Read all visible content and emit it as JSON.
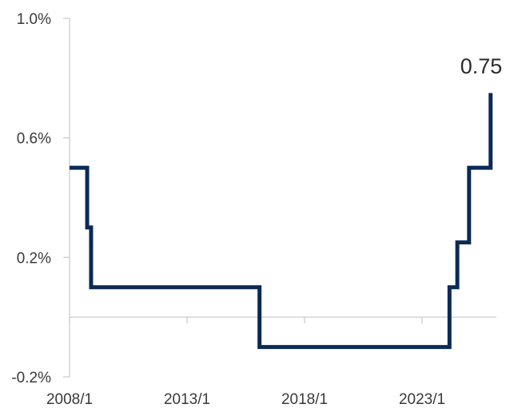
{
  "chart_data": {
    "type": "line",
    "step": true,
    "title": "",
    "xlabel": "",
    "ylabel": "",
    "ylim": [
      -0.2,
      1.0
    ],
    "xlim": [
      "2008-01",
      "2026-03"
    ],
    "y_ticks": [
      {
        "value": 1.0,
        "label": "1.0%"
      },
      {
        "value": 0.6,
        "label": "0.6%"
      },
      {
        "value": 0.2,
        "label": "0.2%"
      },
      {
        "value": -0.2,
        "label": "-0.2%"
      }
    ],
    "x_ticks": [
      {
        "value": "2008-01",
        "label": "2008/1"
      },
      {
        "value": "2013-01",
        "label": "2013/1"
      },
      {
        "value": "2018-01",
        "label": "2018/1"
      },
      {
        "value": "2023-01",
        "label": "2023/1"
      }
    ],
    "grid": false,
    "legend": "none",
    "series": [
      {
        "color": "#0b2a55",
        "points": [
          {
            "x": "2008-01",
            "y": 0.5
          },
          {
            "x": "2008-10",
            "y": 0.3
          },
          {
            "x": "2008-12",
            "y": 0.1
          },
          {
            "x": "2016-02",
            "y": -0.1
          },
          {
            "x": "2024-03",
            "y": 0.1
          },
          {
            "x": "2024-07",
            "y": 0.25
          },
          {
            "x": "2025-01",
            "y": 0.5
          },
          {
            "x": "2025-12",
            "y": 0.75
          },
          {
            "x": "2025-12",
            "y": 0.75
          }
        ]
      }
    ],
    "annotations": [
      {
        "text": "0.75",
        "x": "2025-12",
        "y": 0.75
      }
    ]
  }
}
